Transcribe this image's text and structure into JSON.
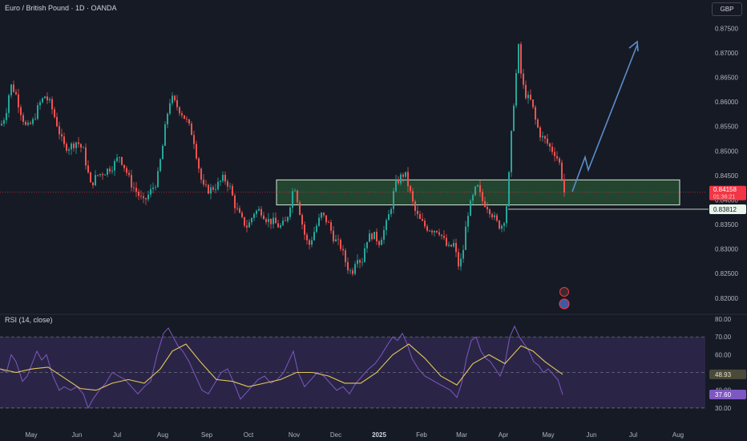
{
  "header": {
    "title": "Euro / British Pound · 1D · OANDA",
    "currency": "GBP"
  },
  "rsi_panel": {
    "title": "RSI (14, close)"
  },
  "chart_data": [
    {
      "type": "candlestick",
      "title": "Euro / British Pound · 1D · OANDA",
      "x_ticks": [
        "May",
        "Jun",
        "Jul",
        "Aug",
        "Sep",
        "Oct",
        "Nov",
        "Dec",
        "2025",
        "Feb",
        "Mar",
        "Apr",
        "May",
        "Jun",
        "Jul",
        "Aug"
      ],
      "y_ticks": [
        "0.87500",
        "0.87000",
        "0.86500",
        "0.86000",
        "0.85500",
        "0.85000",
        "0.84500",
        "0.84000",
        "0.83500",
        "0.83000",
        "0.82500",
        "0.82000"
      ],
      "ylim": [
        0.8167,
        0.8775
      ],
      "grid": false,
      "last_price": "0.84158",
      "countdown": "01:36:21",
      "zone_bottom_price": "0.83812",
      "support_zone": {
        "from": "Oct",
        "to": "May",
        "low": 0.839,
        "high": 0.8441,
        "color": "#2f6a3a"
      },
      "projection_arrow": {
        "color": "#5b8ec9"
      },
      "colors": {
        "up": "#26a69a",
        "down": "#ef5350",
        "last_price_label": "#f23645",
        "zone_label": "#e9f5ea"
      },
      "anchor_points": [
        {
          "x": 0,
          "y": 0.8552
        },
        {
          "x": 6,
          "y": 0.8575
        },
        {
          "x": 12,
          "y": 0.8635
        },
        {
          "x": 18,
          "y": 0.862
        },
        {
          "x": 25,
          "y": 0.858
        },
        {
          "x": 32,
          "y": 0.8545
        },
        {
          "x": 40,
          "y": 0.856
        },
        {
          "x": 48,
          "y": 0.8595
        },
        {
          "x": 55,
          "y": 0.8612
        },
        {
          "x": 62,
          "y": 0.8595
        },
        {
          "x": 70,
          "y": 0.8555
        },
        {
          "x": 78,
          "y": 0.851
        },
        {
          "x": 86,
          "y": 0.8508
        },
        {
          "x": 95,
          "y": 0.852
        },
        {
          "x": 103,
          "y": 0.85
        },
        {
          "x": 112,
          "y": 0.843
        },
        {
          "x": 120,
          "y": 0.845
        },
        {
          "x": 130,
          "y": 0.8458
        },
        {
          "x": 140,
          "y": 0.847
        },
        {
          "x": 148,
          "y": 0.849
        },
        {
          "x": 155,
          "y": 0.8465
        },
        {
          "x": 162,
          "y": 0.8435
        },
        {
          "x": 170,
          "y": 0.8415
        },
        {
          "x": 178,
          "y": 0.8395
        },
        {
          "x": 186,
          "y": 0.8415
        },
        {
          "x": 195,
          "y": 0.844
        },
        {
          "x": 202,
          "y": 0.851
        },
        {
          "x": 207,
          "y": 0.857
        },
        {
          "x": 212,
          "y": 0.861
        },
        {
          "x": 218,
          "y": 0.8595
        },
        {
          "x": 225,
          "y": 0.858
        },
        {
          "x": 232,
          "y": 0.856
        },
        {
          "x": 240,
          "y": 0.853
        },
        {
          "x": 246,
          "y": 0.8475
        },
        {
          "x": 252,
          "y": 0.8425
        },
        {
          "x": 260,
          "y": 0.842
        },
        {
          "x": 270,
          "y": 0.843
        },
        {
          "x": 278,
          "y": 0.8445
        },
        {
          "x": 285,
          "y": 0.843
        },
        {
          "x": 292,
          "y": 0.839
        },
        {
          "x": 300,
          "y": 0.836
        },
        {
          "x": 308,
          "y": 0.8345
        },
        {
          "x": 316,
          "y": 0.8375
        },
        {
          "x": 324,
          "y": 0.838
        },
        {
          "x": 332,
          "y": 0.836
        },
        {
          "x": 340,
          "y": 0.8355
        },
        {
          "x": 348,
          "y": 0.8345
        },
        {
          "x": 356,
          "y": 0.8355
        },
        {
          "x": 362,
          "y": 0.84
        },
        {
          "x": 366,
          "y": 0.8435
        },
        {
          "x": 372,
          "y": 0.8385
        },
        {
          "x": 378,
          "y": 0.8335
        },
        {
          "x": 384,
          "y": 0.8305
        },
        {
          "x": 392,
          "y": 0.834
        },
        {
          "x": 400,
          "y": 0.837
        },
        {
          "x": 408,
          "y": 0.8355
        },
        {
          "x": 416,
          "y": 0.832
        },
        {
          "x": 424,
          "y": 0.8305
        },
        {
          "x": 432,
          "y": 0.8265
        },
        {
          "x": 438,
          "y": 0.825
        },
        {
          "x": 444,
          "y": 0.829
        },
        {
          "x": 450,
          "y": 0.827
        },
        {
          "x": 456,
          "y": 0.832
        },
        {
          "x": 464,
          "y": 0.833
        },
        {
          "x": 472,
          "y": 0.8315
        },
        {
          "x": 480,
          "y": 0.8345
        },
        {
          "x": 486,
          "y": 0.838
        },
        {
          "x": 492,
          "y": 0.843
        },
        {
          "x": 498,
          "y": 0.8445
        },
        {
          "x": 504,
          "y": 0.8455
        },
        {
          "x": 510,
          "y": 0.842
        },
        {
          "x": 516,
          "y": 0.838
        },
        {
          "x": 522,
          "y": 0.836
        },
        {
          "x": 530,
          "y": 0.8345
        },
        {
          "x": 538,
          "y": 0.834
        },
        {
          "x": 546,
          "y": 0.834
        },
        {
          "x": 552,
          "y": 0.832
        },
        {
          "x": 558,
          "y": 0.83
        },
        {
          "x": 565,
          "y": 0.831
        },
        {
          "x": 572,
          "y": 0.826
        },
        {
          "x": 577,
          "y": 0.83
        },
        {
          "x": 582,
          "y": 0.837
        },
        {
          "x": 588,
          "y": 0.84
        },
        {
          "x": 594,
          "y": 0.843
        },
        {
          "x": 600,
          "y": 0.84
        },
        {
          "x": 606,
          "y": 0.839
        },
        {
          "x": 612,
          "y": 0.8375
        },
        {
          "x": 618,
          "y": 0.8355
        },
        {
          "x": 624,
          "y": 0.8345
        },
        {
          "x": 630,
          "y": 0.837
        },
        {
          "x": 634,
          "y": 0.845
        },
        {
          "x": 638,
          "y": 0.856
        },
        {
          "x": 642,
          "y": 0.864
        },
        {
          "x": 646,
          "y": 0.871
        },
        {
          "x": 650,
          "y": 0.864
        },
        {
          "x": 656,
          "y": 0.861
        },
        {
          "x": 662,
          "y": 0.86
        },
        {
          "x": 668,
          "y": 0.8555
        },
        {
          "x": 674,
          "y": 0.853
        },
        {
          "x": 680,
          "y": 0.852
        },
        {
          "x": 686,
          "y": 0.8505
        },
        {
          "x": 692,
          "y": 0.8495
        },
        {
          "x": 698,
          "y": 0.847
        },
        {
          "x": 703,
          "y": 0.8416
        }
      ]
    },
    {
      "type": "line",
      "title": "RSI (14, close)",
      "ylim": [
        25,
        80
      ],
      "y_ticks": [
        "80.00",
        "70.00",
        "60.00",
        "50.00",
        "40.00",
        "30.00"
      ],
      "upper_band": 70,
      "lower_band": 30,
      "band_fill": "#2a2546",
      "rsi_last": "37.60",
      "ma_last": "48.93",
      "series": [
        {
          "color": "#7e57c2",
          "points": [
            {
              "x": 0,
              "y": 52
            },
            {
              "x": 8,
              "y": 50
            },
            {
              "x": 14,
              "y": 60
            },
            {
              "x": 20,
              "y": 56
            },
            {
              "x": 28,
              "y": 45
            },
            {
              "x": 34,
              "y": 48
            },
            {
              "x": 40,
              "y": 55
            },
            {
              "x": 46,
              "y": 62
            },
            {
              "x": 52,
              "y": 57
            },
            {
              "x": 58,
              "y": 60
            },
            {
              "x": 66,
              "y": 48
            },
            {
              "x": 74,
              "y": 40
            },
            {
              "x": 80,
              "y": 42
            },
            {
              "x": 88,
              "y": 40
            },
            {
              "x": 96,
              "y": 42
            },
            {
              "x": 104,
              "y": 38
            },
            {
              "x": 110,
              "y": 30
            },
            {
              "x": 116,
              "y": 35
            },
            {
              "x": 124,
              "y": 40
            },
            {
              "x": 132,
              "y": 44
            },
            {
              "x": 140,
              "y": 50
            },
            {
              "x": 148,
              "y": 48
            },
            {
              "x": 156,
              "y": 46
            },
            {
              "x": 164,
              "y": 42
            },
            {
              "x": 172,
              "y": 38
            },
            {
              "x": 180,
              "y": 42
            },
            {
              "x": 188,
              "y": 45
            },
            {
              "x": 196,
              "y": 60
            },
            {
              "x": 204,
              "y": 72
            },
            {
              "x": 210,
              "y": 75
            },
            {
              "x": 216,
              "y": 70
            },
            {
              "x": 222,
              "y": 65
            },
            {
              "x": 228,
              "y": 62
            },
            {
              "x": 236,
              "y": 56
            },
            {
              "x": 244,
              "y": 48
            },
            {
              "x": 252,
              "y": 40
            },
            {
              "x": 260,
              "y": 38
            },
            {
              "x": 268,
              "y": 44
            },
            {
              "x": 276,
              "y": 50
            },
            {
              "x": 284,
              "y": 52
            },
            {
              "x": 292,
              "y": 44
            },
            {
              "x": 300,
              "y": 35
            },
            {
              "x": 306,
              "y": 38
            },
            {
              "x": 314,
              "y": 42
            },
            {
              "x": 322,
              "y": 46
            },
            {
              "x": 330,
              "y": 48
            },
            {
              "x": 338,
              "y": 44
            },
            {
              "x": 346,
              "y": 46
            },
            {
              "x": 354,
              "y": 50
            },
            {
              "x": 362,
              "y": 58
            },
            {
              "x": 366,
              "y": 62
            },
            {
              "x": 372,
              "y": 50
            },
            {
              "x": 380,
              "y": 42
            },
            {
              "x": 388,
              "y": 46
            },
            {
              "x": 396,
              "y": 50
            },
            {
              "x": 404,
              "y": 48
            },
            {
              "x": 412,
              "y": 44
            },
            {
              "x": 420,
              "y": 40
            },
            {
              "x": 428,
              "y": 42
            },
            {
              "x": 436,
              "y": 38
            },
            {
              "x": 444,
              "y": 44
            },
            {
              "x": 452,
              "y": 48
            },
            {
              "x": 460,
              "y": 52
            },
            {
              "x": 468,
              "y": 55
            },
            {
              "x": 476,
              "y": 60
            },
            {
              "x": 484,
              "y": 66
            },
            {
              "x": 490,
              "y": 70
            },
            {
              "x": 496,
              "y": 68
            },
            {
              "x": 502,
              "y": 72
            },
            {
              "x": 508,
              "y": 66
            },
            {
              "x": 514,
              "y": 58
            },
            {
              "x": 522,
              "y": 52
            },
            {
              "x": 530,
              "y": 48
            },
            {
              "x": 538,
              "y": 46
            },
            {
              "x": 546,
              "y": 44
            },
            {
              "x": 554,
              "y": 42
            },
            {
              "x": 562,
              "y": 40
            },
            {
              "x": 570,
              "y": 36
            },
            {
              "x": 576,
              "y": 44
            },
            {
              "x": 582,
              "y": 58
            },
            {
              "x": 588,
              "y": 68
            },
            {
              "x": 594,
              "y": 70
            },
            {
              "x": 600,
              "y": 62
            },
            {
              "x": 606,
              "y": 58
            },
            {
              "x": 612,
              "y": 56
            },
            {
              "x": 618,
              "y": 52
            },
            {
              "x": 624,
              "y": 48
            },
            {
              "x": 630,
              "y": 55
            },
            {
              "x": 636,
              "y": 70
            },
            {
              "x": 642,
              "y": 76
            },
            {
              "x": 648,
              "y": 70
            },
            {
              "x": 654,
              "y": 66
            },
            {
              "x": 660,
              "y": 62
            },
            {
              "x": 666,
              "y": 56
            },
            {
              "x": 672,
              "y": 54
            },
            {
              "x": 678,
              "y": 50
            },
            {
              "x": 684,
              "y": 52
            },
            {
              "x": 690,
              "y": 49
            },
            {
              "x": 696,
              "y": 46
            },
            {
              "x": 702,
              "y": 37.6
            }
          ]
        },
        {
          "color": "#e5c75a",
          "points": [
            {
              "x": 0,
              "y": 52
            },
            {
              "x": 20,
              "y": 50
            },
            {
              "x": 40,
              "y": 52
            },
            {
              "x": 60,
              "y": 53
            },
            {
              "x": 80,
              "y": 47
            },
            {
              "x": 100,
              "y": 41
            },
            {
              "x": 120,
              "y": 40
            },
            {
              "x": 140,
              "y": 44
            },
            {
              "x": 160,
              "y": 46
            },
            {
              "x": 180,
              "y": 44
            },
            {
              "x": 200,
              "y": 52
            },
            {
              "x": 215,
              "y": 62
            },
            {
              "x": 232,
              "y": 66
            },
            {
              "x": 250,
              "y": 56
            },
            {
              "x": 270,
              "y": 46
            },
            {
              "x": 290,
              "y": 45
            },
            {
              "x": 310,
              "y": 42
            },
            {
              "x": 330,
              "y": 44
            },
            {
              "x": 350,
              "y": 46
            },
            {
              "x": 370,
              "y": 50
            },
            {
              "x": 390,
              "y": 50
            },
            {
              "x": 410,
              "y": 48
            },
            {
              "x": 430,
              "y": 44
            },
            {
              "x": 450,
              "y": 44
            },
            {
              "x": 470,
              "y": 50
            },
            {
              "x": 490,
              "y": 60
            },
            {
              "x": 510,
              "y": 66
            },
            {
              "x": 530,
              "y": 58
            },
            {
              "x": 550,
              "y": 48
            },
            {
              "x": 570,
              "y": 43
            },
            {
              "x": 590,
              "y": 55
            },
            {
              "x": 610,
              "y": 60
            },
            {
              "x": 630,
              "y": 55
            },
            {
              "x": 650,
              "y": 65
            },
            {
              "x": 665,
              "y": 62
            },
            {
              "x": 680,
              "y": 56
            },
            {
              "x": 702,
              "y": 48.93
            }
          ]
        }
      ]
    }
  ]
}
